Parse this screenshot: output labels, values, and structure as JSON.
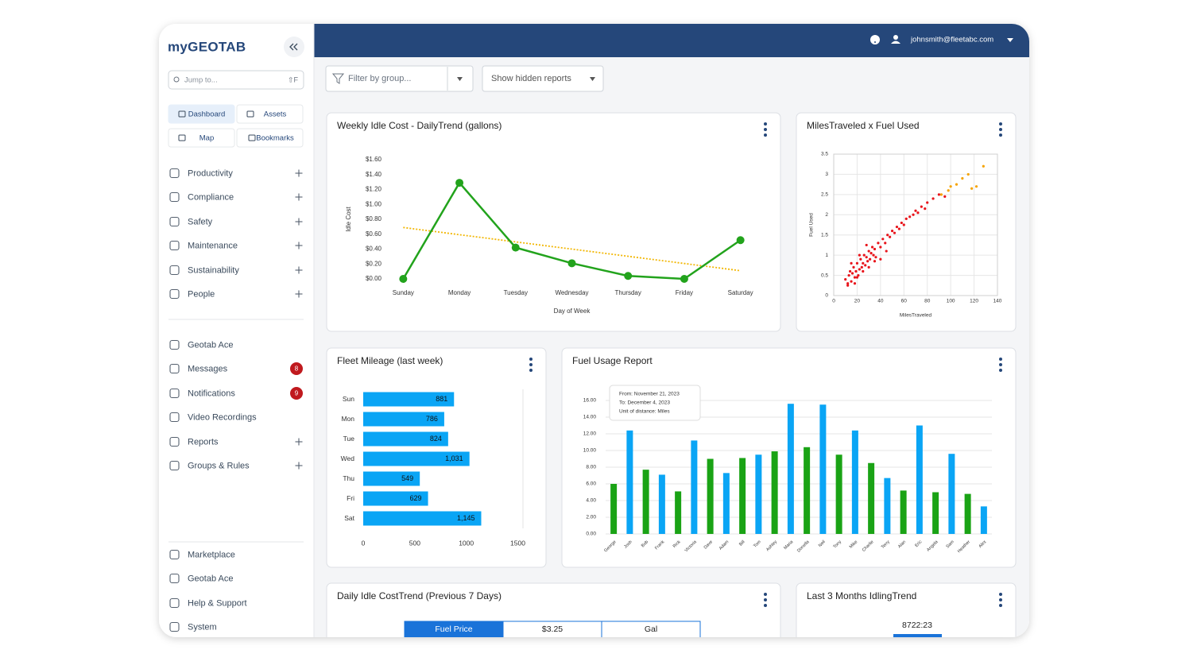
{
  "sidebar": {
    "logo": "myGEOTAB",
    "search_placeholder": "Jump to...",
    "search_shortcut": "⇧F",
    "quick_links": [
      "Dashboard",
      "Assets",
      "Map",
      "Bookmarks"
    ],
    "nav": [
      {
        "label": "Productivity",
        "expandable": true
      },
      {
        "label": "Compliance",
        "expandable": true
      },
      {
        "label": "Safety",
        "expandable": true
      },
      {
        "label": "Maintenance",
        "expandable": true
      },
      {
        "label": "Sustainability",
        "expandable": true
      },
      {
        "label": "People",
        "expandable": true
      }
    ],
    "nav2": [
      {
        "label": "Geotab Ace"
      },
      {
        "label": "Messages",
        "badge": 8
      },
      {
        "label": "Notifications",
        "badge": 9
      },
      {
        "label": "Video Recordings"
      },
      {
        "label": "Reports",
        "expandable": true
      },
      {
        "label": "Groups & Rules",
        "expandable": true
      }
    ],
    "nav3": [
      {
        "label": "Marketplace"
      },
      {
        "label": "Geotab Ace"
      },
      {
        "label": "Help & Support"
      },
      {
        "label": "System"
      }
    ]
  },
  "header": {
    "user": "johnsmith@fleetabc.com"
  },
  "toolbar": {
    "filter": "Filter by group...",
    "hidden_reports": "Show hidden reports"
  },
  "chart_data": [
    {
      "type": "line",
      "title": "Weekly Idle Cost - DailyTrend (gallons)",
      "x_label": "Day of Week",
      "y_label": "Idle Cost",
      "categories": [
        "Sunday",
        "Monday",
        "Tuesday",
        "Wednesday",
        "Thursday",
        "Friday",
        "Saturday"
      ],
      "values": [
        0,
        1.29,
        0.42,
        0.21,
        0.04,
        0,
        0.52
      ],
      "color": "#22a31c",
      "trend": {
        "color": "#f2b705",
        "values": [
          0.69,
          0.11
        ]
      },
      "ylim": [
        0,
        1.6
      ],
      "yticks": [
        {
          "value": 0,
          "label": "$0.00"
        },
        {
          "value": 0.2,
          "label": "$0.20"
        },
        {
          "value": 0.4,
          "label": "$0.40"
        },
        {
          "value": 0.6,
          "label": "$0.60"
        },
        {
          "value": 0.8,
          "label": "$0.80"
        },
        {
          "value": 1.0,
          "label": "$1.00"
        },
        {
          "value": 1.2,
          "label": "$1.20"
        },
        {
          "value": 1.4,
          "label": "$1.40"
        },
        {
          "value": 1.6,
          "label": "$1.60"
        }
      ]
    },
    {
      "type": "scatter",
      "title": "MilesTraveled x Fuel Used",
      "x_label": "MilesTraveled",
      "y_label": "Fuel Used",
      "series": [
        {
          "color": "#e8141b",
          "x": [
            10,
            12,
            13,
            14,
            15,
            16,
            17,
            18,
            19,
            20,
            21,
            22,
            23,
            24,
            25,
            26,
            27,
            28,
            29,
            30,
            31,
            32,
            33,
            34,
            35,
            36,
            38,
            40,
            42,
            44,
            46,
            48,
            50,
            52,
            54,
            56,
            58,
            60,
            62,
            65,
            68,
            70,
            72,
            75,
            78,
            80,
            85,
            90,
            95,
            12,
            15,
            18,
            20,
            22,
            25,
            28,
            30,
            35,
            40,
            45
          ],
          "values": [
            0.4,
            0.3,
            0.5,
            0.6,
            0.35,
            0.55,
            0.7,
            0.45,
            0.6,
            0.8,
            0.5,
            0.65,
            0.9,
            0.7,
            0.8,
            1.0,
            0.75,
            0.95,
            0.85,
            1.1,
            0.9,
            1.05,
            1.2,
            1.0,
            1.15,
            0.95,
            1.3,
            1.2,
            1.4,
            1.3,
            1.5,
            1.45,
            1.6,
            1.55,
            1.7,
            1.65,
            1.8,
            1.75,
            1.9,
            1.95,
            2.0,
            2.1,
            2.05,
            2.2,
            2.15,
            2.3,
            2.4,
            2.5,
            2.45,
            0.25,
            0.8,
            0.3,
            0.45,
            1.0,
            0.6,
            1.25,
            0.7,
            0.85,
            0.9,
            1.1
          ]
        },
        {
          "color": "#f5a300",
          "x": [
            92,
            98,
            100,
            105,
            110,
            115,
            118,
            122,
            128
          ],
          "values": [
            2.5,
            2.6,
            2.7,
            2.75,
            2.9,
            3.0,
            2.65,
            2.7,
            3.2
          ]
        }
      ],
      "xlim": [
        0,
        140
      ],
      "xticks": [
        0,
        20,
        40,
        60,
        80,
        100,
        120,
        140
      ],
      "ylim": [
        0,
        3.5
      ],
      "yticks": [
        0,
        0.5,
        1,
        1.5,
        2,
        2.5,
        3,
        3.5
      ],
      "grid": true
    },
    {
      "type": "bar",
      "orientation": "horizontal",
      "title": "Fleet Mileage (last week)",
      "categories": [
        "Sun",
        "Mon",
        "Tue",
        "Wed",
        "Thu",
        "Fri",
        "Sat"
      ],
      "values": [
        881,
        786,
        824,
        1031,
        549,
        629,
        1145
      ],
      "value_labels": [
        "881",
        "786",
        "824",
        "1,031",
        "549",
        "629",
        "1,145"
      ],
      "color": "#0aa5f5",
      "xlim": [
        0,
        1550
      ],
      "xticks": [
        0,
        500,
        1000,
        1500
      ]
    },
    {
      "type": "bar",
      "title": "Fuel Usage Report",
      "annotation": [
        "From: November 21, 2023",
        "To: December 4, 2023",
        "Unit of distance: Miles"
      ],
      "categories": [
        "George",
        "Josh",
        "Bob",
        "Frank",
        "Rick",
        "Victoria",
        "Dave",
        "Adam",
        "Bill",
        "Tom",
        "Ashley",
        "Maria",
        "Donella",
        "Neil",
        "Tony",
        "Mike",
        "Charlie",
        "Terry",
        "Alan",
        "Eric",
        "Angela",
        "Sam",
        "Heather",
        "Alex"
      ],
      "values": [
        6.0,
        12.4,
        7.7,
        7.1,
        5.1,
        11.2,
        9.0,
        7.3,
        9.1,
        9.5,
        9.9,
        15.6,
        10.4,
        15.5,
        9.5,
        12.4,
        8.5,
        6.7,
        5.2,
        13.0,
        5.0,
        9.6,
        4.8,
        3.3
      ],
      "colors": [
        "#1aa315",
        "#0aa5f5",
        "#1aa315",
        "#0aa5f5",
        "#1aa315",
        "#0aa5f5",
        "#1aa315",
        "#0aa5f5",
        "#1aa315",
        "#0aa5f5",
        "#1aa315",
        "#0aa5f5",
        "#1aa315",
        "#0aa5f5",
        "#1aa315",
        "#0aa5f5",
        "#1aa315",
        "#0aa5f5",
        "#1aa315",
        "#0aa5f5",
        "#1aa315",
        "#0aa5f5",
        "#1aa315",
        "#0aa5f5"
      ],
      "ylim": [
        0,
        16
      ],
      "yticks": [
        {
          "value": 0,
          "label": "0.00"
        },
        {
          "value": 2,
          "label": "2.00"
        },
        {
          "value": 4,
          "label": "4.00"
        },
        {
          "value": 6,
          "label": "6.00"
        },
        {
          "value": 8,
          "label": "8.00"
        },
        {
          "value": 10,
          "label": "10.00"
        },
        {
          "value": 12,
          "label": "12.00"
        },
        {
          "value": 14,
          "label": "14.00"
        },
        {
          "value": 16,
          "label": "16.00"
        }
      ],
      "grid": true
    }
  ],
  "cards": [
    {
      "title": "Daily Idle CostTrend (Previous 7 Days)",
      "cells": [
        "Fuel Price",
        "$3.25",
        "Gal"
      ]
    },
    {
      "title": "Last 3 Months IdlingTrend",
      "value": "8722:23"
    }
  ]
}
